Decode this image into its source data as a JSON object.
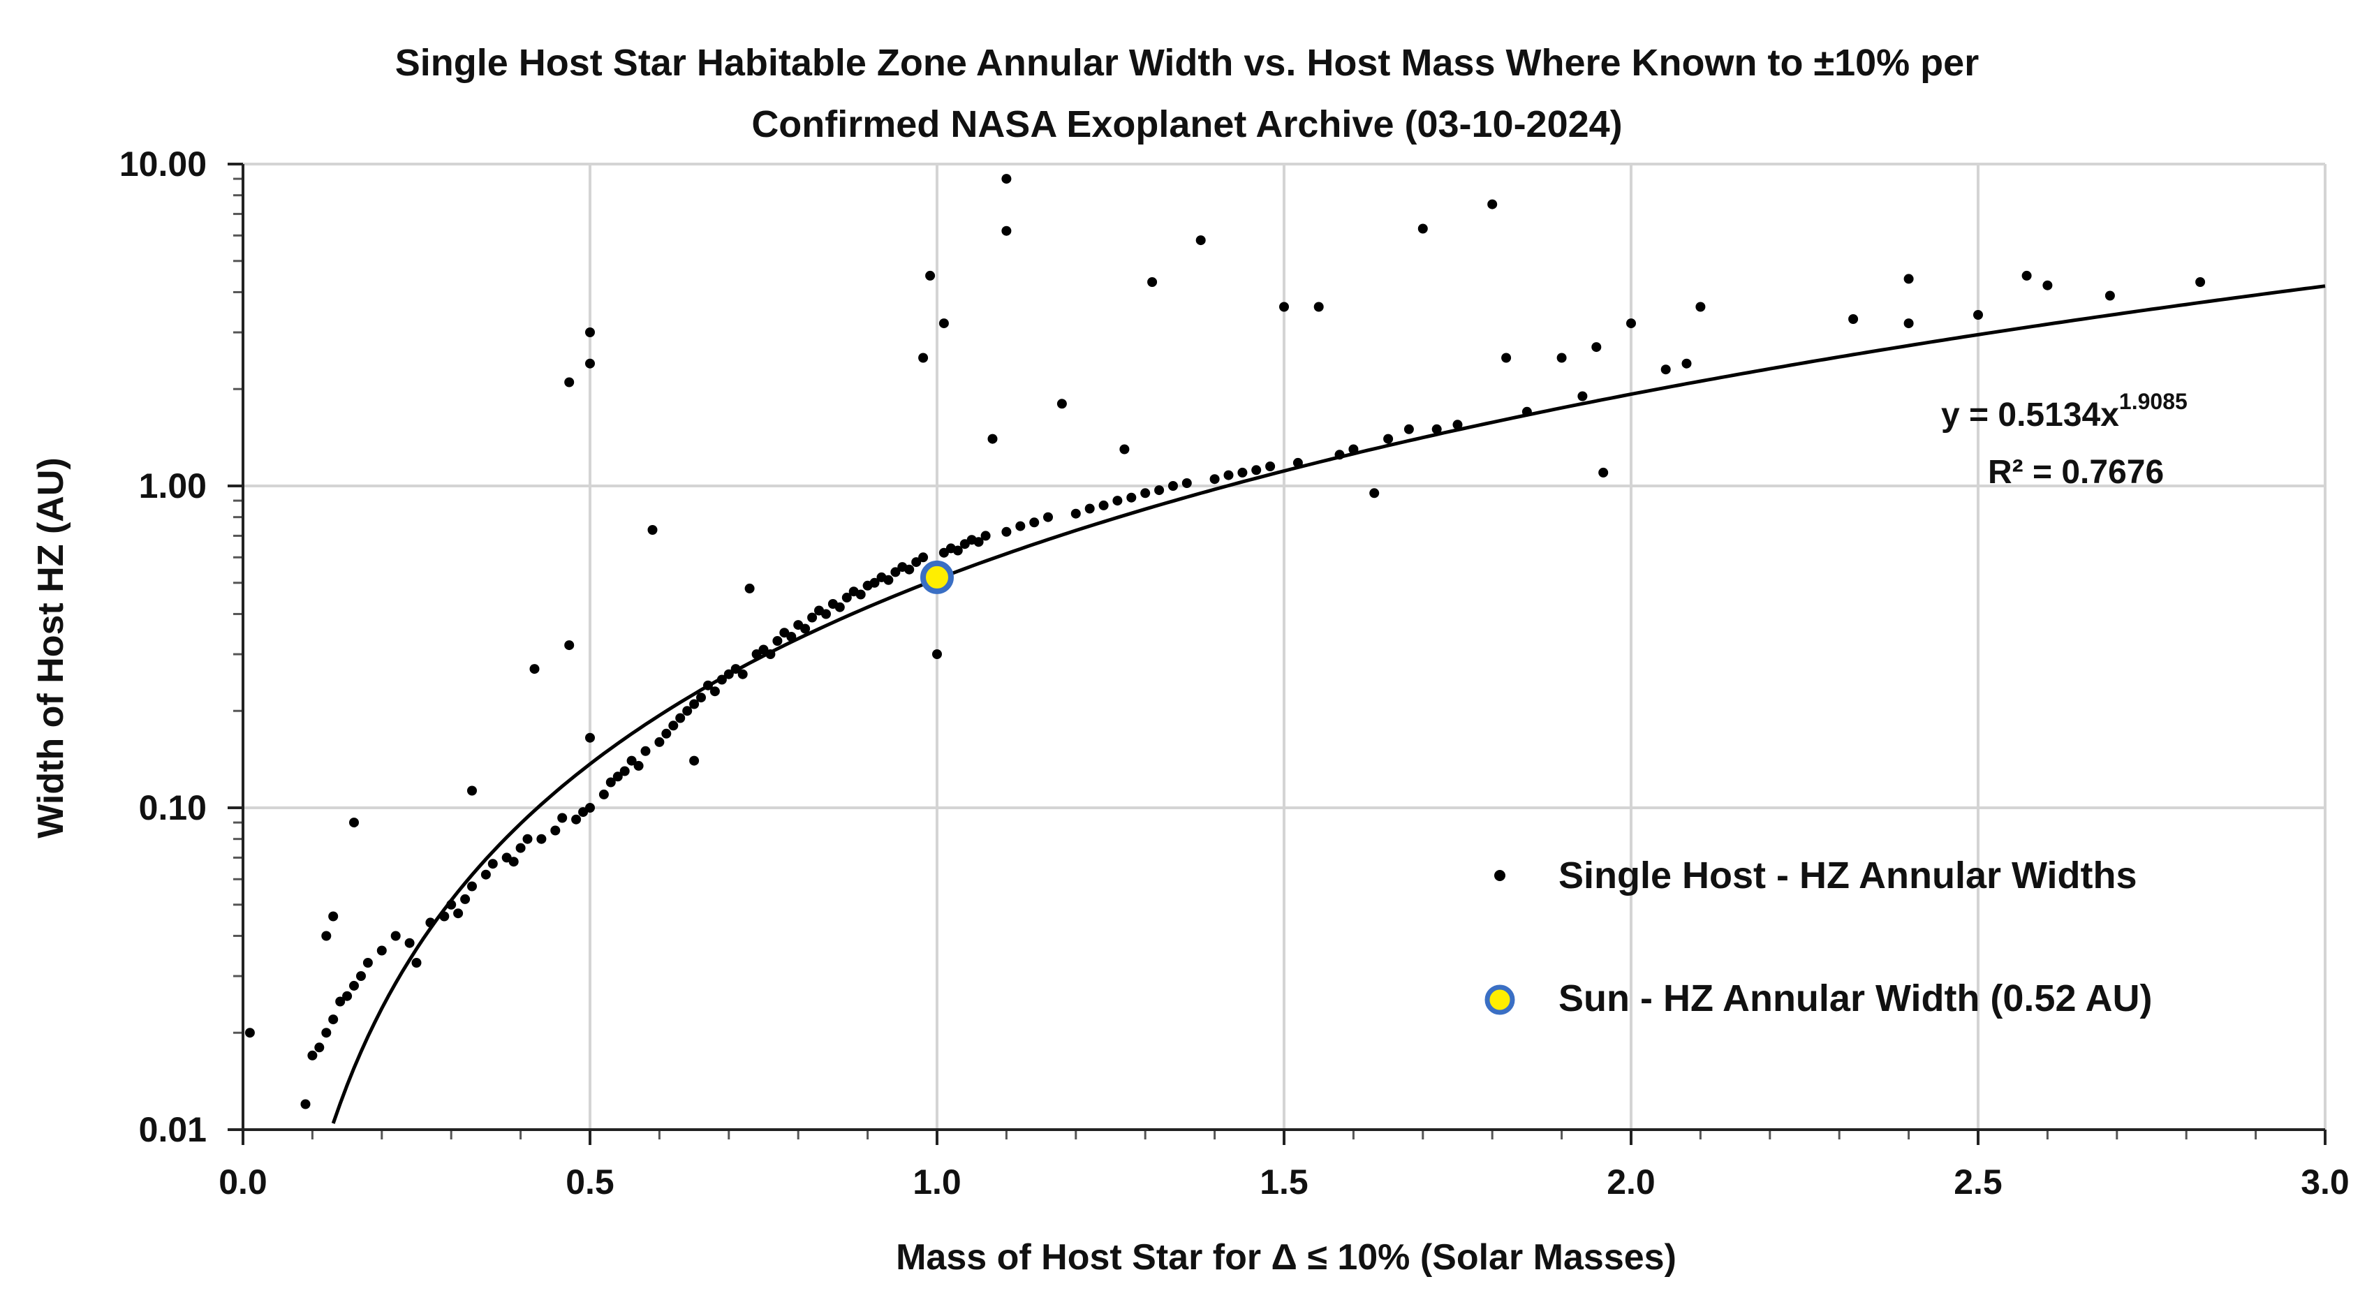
{
  "chart_data": {
    "type": "scatter",
    "title_lines": [
      "Single Host Star Habitable Zone Annular Width vs. Host Mass Where Known to ±10% per",
      "Confirmed NASA Exoplanet Archive (03-10-2024)"
    ],
    "xlabel": "Mass of Host Star for Δ ≤ 10% (Solar Masses)",
    "ylabel": "Width of Host HZ (AU)",
    "xlim": [
      0,
      3.0
    ],
    "ylim": [
      0.01,
      10.0
    ],
    "yscale": "log",
    "grid": true,
    "x_ticks": [
      {
        "value": 0,
        "label": "0.0"
      },
      {
        "value": 0.5,
        "label": "0.5"
      },
      {
        "value": 1.0,
        "label": "1.0"
      },
      {
        "value": 1.5,
        "label": "1.5"
      },
      {
        "value": 2.0,
        "label": "2.0"
      },
      {
        "value": 2.5,
        "label": "2.5"
      },
      {
        "value": 3.0,
        "label": "3.0"
      }
    ],
    "y_ticks": [
      {
        "value": 0.01,
        "label": "0.01"
      },
      {
        "value": 0.1,
        "label": "0.10"
      },
      {
        "value": 1.0,
        "label": "1.00"
      },
      {
        "value": 10.0,
        "label": "10.00"
      }
    ],
    "series": [
      {
        "name": "Single Host - HZ Annular Widths",
        "color": "#000000",
        "points": [
          [
            0.01,
            0.02
          ],
          [
            0.09,
            0.012
          ],
          [
            0.1,
            0.017
          ],
          [
            0.11,
            0.018
          ],
          [
            0.12,
            0.02
          ],
          [
            0.13,
            0.022
          ],
          [
            0.12,
            0.04
          ],
          [
            0.13,
            0.046
          ],
          [
            0.14,
            0.025
          ],
          [
            0.15,
            0.026
          ],
          [
            0.16,
            0.028
          ],
          [
            0.16,
            0.09
          ],
          [
            0.17,
            0.03
          ],
          [
            0.18,
            0.033
          ],
          [
            0.2,
            0.036
          ],
          [
            0.22,
            0.04
          ],
          [
            0.24,
            0.038
          ],
          [
            0.25,
            0.033
          ],
          [
            0.27,
            0.044
          ],
          [
            0.29,
            0.046
          ],
          [
            0.3,
            0.05
          ],
          [
            0.31,
            0.047
          ],
          [
            0.32,
            0.052
          ],
          [
            0.33,
            0.057
          ],
          [
            0.33,
            0.113
          ],
          [
            0.35,
            0.062
          ],
          [
            0.36,
            0.067
          ],
          [
            0.38,
            0.07
          ],
          [
            0.39,
            0.068
          ],
          [
            0.4,
            0.075
          ],
          [
            0.41,
            0.08
          ],
          [
            0.42,
            0.27
          ],
          [
            0.43,
            0.08
          ],
          [
            0.45,
            0.085
          ],
          [
            0.46,
            0.093
          ],
          [
            0.47,
            0.32
          ],
          [
            0.47,
            2.1
          ],
          [
            0.48,
            0.092
          ],
          [
            0.49,
            0.097
          ],
          [
            0.5,
            2.4
          ],
          [
            0.5,
            3.0
          ],
          [
            0.5,
            0.1
          ],
          [
            0.5,
            0.165
          ],
          [
            0.52,
            0.11
          ],
          [
            0.53,
            0.12
          ],
          [
            0.54,
            0.125
          ],
          [
            0.55,
            0.13
          ],
          [
            0.56,
            0.14
          ],
          [
            0.57,
            0.135
          ],
          [
            0.58,
            0.15
          ],
          [
            0.59,
            0.73
          ],
          [
            0.6,
            0.16
          ],
          [
            0.61,
            0.17
          ],
          [
            0.62,
            0.18
          ],
          [
            0.63,
            0.19
          ],
          [
            0.64,
            0.2
          ],
          [
            0.65,
            0.21
          ],
          [
            0.65,
            0.14
          ],
          [
            0.66,
            0.22
          ],
          [
            0.67,
            0.24
          ],
          [
            0.68,
            0.23
          ],
          [
            0.69,
            0.25
          ],
          [
            0.7,
            0.26
          ],
          [
            0.71,
            0.27
          ],
          [
            0.72,
            0.26
          ],
          [
            0.73,
            0.48
          ],
          [
            0.74,
            0.3
          ],
          [
            0.75,
            0.31
          ],
          [
            0.76,
            0.3
          ],
          [
            0.77,
            0.33
          ],
          [
            0.78,
            0.35
          ],
          [
            0.79,
            0.34
          ],
          [
            0.8,
            0.37
          ],
          [
            0.81,
            0.36
          ],
          [
            0.82,
            0.39
          ],
          [
            0.83,
            0.41
          ],
          [
            0.84,
            0.4
          ],
          [
            0.85,
            0.43
          ],
          [
            0.86,
            0.42
          ],
          [
            0.87,
            0.45
          ],
          [
            0.88,
            0.47
          ],
          [
            0.89,
            0.46
          ],
          [
            0.9,
            0.49
          ],
          [
            0.91,
            0.5
          ],
          [
            0.92,
            0.52
          ],
          [
            0.93,
            0.51
          ],
          [
            0.94,
            0.54
          ],
          [
            0.95,
            0.56
          ],
          [
            0.96,
            0.55
          ],
          [
            0.97,
            0.58
          ],
          [
            0.98,
            0.6
          ],
          [
            0.99,
            4.5
          ],
          [
            0.98,
            2.5
          ],
          [
            1.0,
            0.3
          ],
          [
            1.01,
            0.62
          ],
          [
            1.01,
            3.2
          ],
          [
            1.02,
            0.64
          ],
          [
            1.03,
            0.63
          ],
          [
            1.04,
            0.66
          ],
          [
            1.05,
            0.68
          ],
          [
            1.06,
            0.67
          ],
          [
            1.07,
            0.7
          ],
          [
            1.08,
            1.4
          ],
          [
            1.1,
            9.0
          ],
          [
            1.1,
            6.2
          ],
          [
            1.1,
            0.72
          ],
          [
            1.12,
            0.75
          ],
          [
            1.14,
            0.77
          ],
          [
            1.16,
            0.8
          ],
          [
            1.18,
            1.8
          ],
          [
            1.2,
            0.82
          ],
          [
            1.22,
            0.85
          ],
          [
            1.24,
            0.87
          ],
          [
            1.26,
            0.9
          ],
          [
            1.27,
            1.3
          ],
          [
            1.28,
            0.92
          ],
          [
            1.3,
            0.95
          ],
          [
            1.31,
            4.3
          ],
          [
            1.32,
            0.97
          ],
          [
            1.34,
            1.0
          ],
          [
            1.36,
            1.02
          ],
          [
            1.38,
            5.8
          ],
          [
            1.4,
            1.05
          ],
          [
            1.42,
            1.08
          ],
          [
            1.44,
            1.1
          ],
          [
            1.46,
            1.12
          ],
          [
            1.48,
            1.15
          ],
          [
            1.5,
            3.6
          ],
          [
            1.52,
            1.18
          ],
          [
            1.55,
            3.6
          ],
          [
            1.58,
            1.25
          ],
          [
            1.6,
            1.3
          ],
          [
            1.63,
            0.95
          ],
          [
            1.65,
            1.4
          ],
          [
            1.68,
            1.5
          ],
          [
            1.7,
            6.3
          ],
          [
            1.72,
            1.5
          ],
          [
            1.75,
            1.55
          ],
          [
            1.8,
            7.5
          ],
          [
            1.82,
            2.5
          ],
          [
            1.85,
            1.7
          ],
          [
            1.9,
            2.5
          ],
          [
            1.93,
            1.9
          ],
          [
            1.95,
            2.7
          ],
          [
            1.96,
            1.1
          ],
          [
            2.0,
            3.2
          ],
          [
            2.05,
            2.3
          ],
          [
            2.08,
            2.4
          ],
          [
            2.1,
            3.6
          ],
          [
            2.32,
            3.3
          ],
          [
            2.4,
            4.4
          ],
          [
            2.4,
            3.2
          ],
          [
            2.5,
            3.4
          ],
          [
            2.57,
            4.5
          ],
          [
            2.6,
            4.2
          ],
          [
            2.69,
            3.9
          ],
          [
            2.82,
            4.3
          ]
        ]
      },
      {
        "name": "Sun - HZ Annular Width (0.52 AU)",
        "color": "#ffee00",
        "edge_color": "#3a6fc4",
        "points": [
          [
            1.0,
            0.52
          ]
        ]
      }
    ],
    "trendline": {
      "type": "power",
      "a": 0.5134,
      "b": 1.9085,
      "equation_prefix": "y = 0.5134x",
      "equation_exponent": "1.9085",
      "r2_label": "R² = 0.7676"
    },
    "legend": {
      "position": "lower-right",
      "entries": [
        {
          "label": "Single Host - HZ Annular Widths",
          "marker": "dot"
        },
        {
          "label": "Sun - HZ Annular Width (0.52 AU)",
          "marker": "sun"
        }
      ]
    }
  }
}
